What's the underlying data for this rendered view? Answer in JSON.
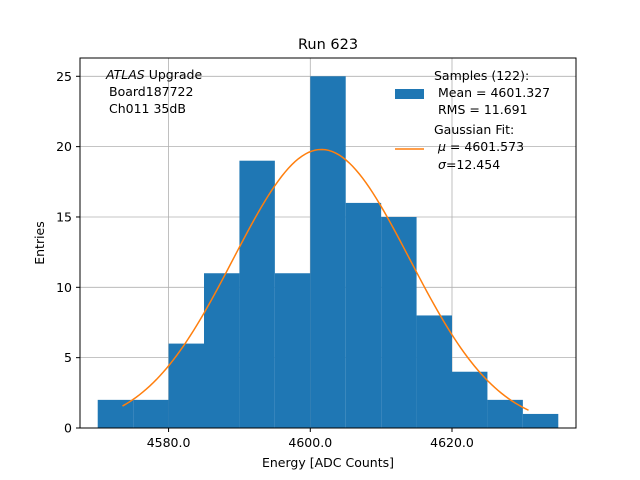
{
  "chart_data": {
    "type": "bar",
    "title": "Run 623",
    "xlabel": "Energy [ADC Counts]",
    "ylabel": "Entries",
    "xlim": [
      4567.5,
      4637.5
    ],
    "ylim": [
      0,
      26.3
    ],
    "grid": true,
    "x_ticks": [
      4580,
      4600,
      4620
    ],
    "x_tick_labels": [
      "4580.0",
      "4600.0",
      "4620.0"
    ],
    "y_ticks": [
      0,
      5,
      10,
      15,
      20,
      25
    ],
    "y_tick_labels": [
      "0",
      "5",
      "10",
      "15",
      "20",
      "25"
    ],
    "bar_color": "#1f77b4",
    "fit_color": "#ff7f0e",
    "histogram": {
      "name": "Samples (122):",
      "bins": [
        {
          "x0": 4570,
          "x1": 4575,
          "count": 2
        },
        {
          "x0": 4575,
          "x1": 4580,
          "count": 2
        },
        {
          "x0": 4580,
          "x1": 4585,
          "count": 6
        },
        {
          "x0": 4585,
          "x1": 4590,
          "count": 11
        },
        {
          "x0": 4590,
          "x1": 4595,
          "count": 19
        },
        {
          "x0": 4595,
          "x1": 4600,
          "count": 11
        },
        {
          "x0": 4600,
          "x1": 4605,
          "count": 25
        },
        {
          "x0": 4605,
          "x1": 4610,
          "count": 16
        },
        {
          "x0": 4610,
          "x1": 4615,
          "count": 15
        },
        {
          "x0": 4615,
          "x1": 4620,
          "count": 8
        },
        {
          "x0": 4620,
          "x1": 4625,
          "count": 4
        },
        {
          "x0": 4625,
          "x1": 4630,
          "count": 2
        },
        {
          "x0": 4630,
          "x1": 4635,
          "count": 1
        }
      ]
    },
    "fit": {
      "name": "Gaussian Fit:",
      "mu": 4601.573,
      "sigma": 12.454,
      "amplitude": 19.8,
      "x_range": [
        4573.5,
        4630.8
      ]
    },
    "annotation": {
      "experiment": "ATLAS",
      "line1_suffix": " Upgrade",
      "line2": "Board187722",
      "line3": "Ch011 35dB"
    },
    "legend": {
      "placement": "top-right",
      "samples_title": "Samples (122):",
      "samples_mean": "Mean = 4601.327",
      "samples_rms": "RMS = 11.691",
      "fit_title": "Gaussian Fit:",
      "fit_mu_value": " = 4601.573",
      "fit_sigma_value": "=12.454"
    }
  }
}
